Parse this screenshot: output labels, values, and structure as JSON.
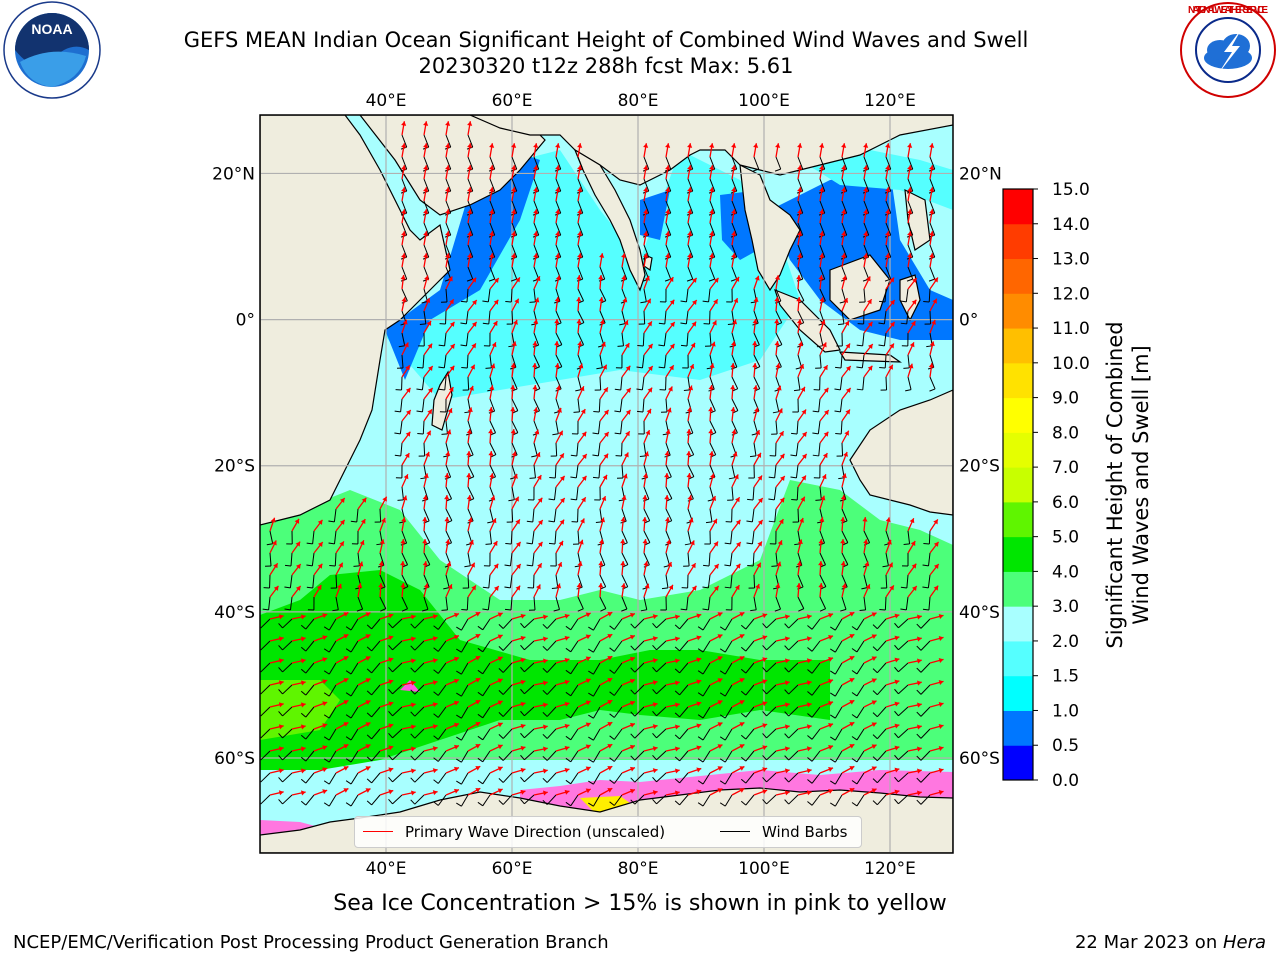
{
  "title": {
    "line1": "GEFS MEAN Indian Ocean Significant Height of Combined Wind Waves and Swell",
    "line2": "20230320 t12z 288h fcst   Max: 5.61"
  },
  "logos": {
    "noaa_text": "NOAA",
    "nws_text": "NATIONAL WEATHER SERVICE"
  },
  "map": {
    "lon_ticks": [
      "40°E",
      "60°E",
      "80°E",
      "100°E",
      "120°E"
    ],
    "lat_ticks": [
      "20°N",
      "0°",
      "20°S",
      "40°S",
      "60°S"
    ],
    "lon_values": [
      40,
      60,
      80,
      100,
      120
    ],
    "lat_values": [
      20,
      0,
      -20,
      -40,
      -60
    ],
    "extent": {
      "lon_min": 20,
      "lon_max": 130,
      "lat_min": -73,
      "lat_max": 28
    },
    "colors": {
      "land": "#efedde",
      "coast": "#000000",
      "grid": "#b0b0b0",
      "wave_arrow": "#ff0000",
      "wind_barb": "#000000"
    }
  },
  "colorbar": {
    "label": "Significant Height of Combined Wind Waves and Swell [m]",
    "label_line1": "Significant Height of Combined",
    "label_line2": "Wind Waves and Swell [m]",
    "ticks": [
      "0.0",
      "0.5",
      "1.0",
      "1.5",
      "2.0",
      "3.0",
      "4.0",
      "5.0",
      "6.0",
      "7.0",
      "8.0",
      "9.0",
      "10.0",
      "11.0",
      "12.0",
      "13.0",
      "14.0",
      "15.0"
    ],
    "colors": [
      "#0000ff",
      "#0077ff",
      "#00ffff",
      "#55ffff",
      "#a8ffff",
      "#4cff7a",
      "#00e600",
      "#5ff500",
      "#c8ff00",
      "#e5ff00",
      "#ffff00",
      "#ffe200",
      "#ffbf00",
      "#ff8c00",
      "#ff6600",
      "#ff3c00",
      "#ff0000"
    ]
  },
  "legend": {
    "wave_label": "Primary Wave Direction (unscaled)",
    "wind_label": "Wind Barbs"
  },
  "subtitle": "Sea Ice Concentration > 15% is shown in pink to yellow",
  "footer": {
    "left": "NCEP/EMC/Verification Post Processing Product Generation Branch",
    "right_prefix": "22 Mar 2023 on ",
    "right_machine": "Hera"
  }
}
